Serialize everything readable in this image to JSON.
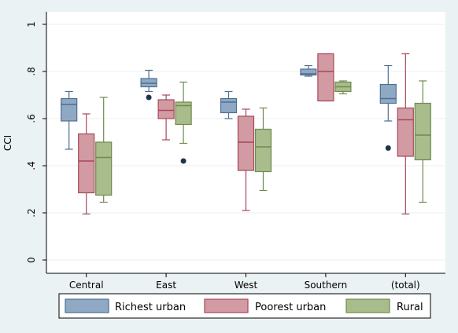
{
  "chart_data": {
    "type": "box",
    "title": "",
    "xlabel": "",
    "ylabel": "CCI",
    "ylim": [
      0,
      1
    ],
    "y_ticks": [
      0,
      0.2,
      0.4,
      0.6,
      0.8,
      1
    ],
    "y_tick_labels": [
      "0",
      ".2",
      ".4",
      ".6",
      ".8",
      "1"
    ],
    "grid": true,
    "legend_position": "bottom",
    "categories": [
      "Central",
      "East",
      "West",
      "Southern",
      "(total)"
    ],
    "series": [
      {
        "name": "Richest urban",
        "color": "#4e6f92",
        "fill": "#8fa9c4",
        "boxes": [
          {
            "min": 0.47,
            "q1": 0.59,
            "median": 0.66,
            "q3": 0.685,
            "max": 0.715,
            "outliers": []
          },
          {
            "min": 0.715,
            "q1": 0.735,
            "median": 0.75,
            "q3": 0.77,
            "max": 0.805,
            "outliers": [
              0.69
            ]
          },
          {
            "min": 0.6,
            "q1": 0.625,
            "median": 0.67,
            "q3": 0.685,
            "max": 0.715,
            "outliers": []
          },
          {
            "min": 0.78,
            "q1": 0.785,
            "median": 0.79,
            "q3": 0.81,
            "max": 0.825,
            "outliers": []
          },
          {
            "min": 0.59,
            "q1": 0.665,
            "median": 0.685,
            "q3": 0.745,
            "max": 0.825,
            "outliers": [
              0.475
            ]
          }
        ]
      },
      {
        "name": "Poorest urban",
        "color": "#a8475a",
        "fill": "#d29aa3",
        "boxes": [
          {
            "min": 0.195,
            "q1": 0.285,
            "median": 0.42,
            "q3": 0.535,
            "max": 0.62,
            "outliers": []
          },
          {
            "min": 0.51,
            "q1": 0.6,
            "median": 0.635,
            "q3": 0.68,
            "max": 0.7,
            "outliers": []
          },
          {
            "min": 0.21,
            "q1": 0.38,
            "median": 0.5,
            "q3": 0.61,
            "max": 0.64,
            "outliers": []
          },
          {
            "min": 0.675,
            "q1": 0.675,
            "median": 0.8,
            "q3": 0.875,
            "max": 0.875,
            "outliers": []
          },
          {
            "min": 0.195,
            "q1": 0.44,
            "median": 0.595,
            "q3": 0.645,
            "max": 0.875,
            "outliers": []
          }
        ]
      },
      {
        "name": "Rural",
        "color": "#6f8a4e",
        "fill": "#a8bc8c",
        "boxes": [
          {
            "min": 0.245,
            "q1": 0.275,
            "median": 0.435,
            "q3": 0.5,
            "max": 0.69,
            "outliers": []
          },
          {
            "min": 0.495,
            "q1": 0.575,
            "median": 0.655,
            "q3": 0.67,
            "max": 0.755,
            "outliers": [
              0.42
            ]
          },
          {
            "min": 0.295,
            "q1": 0.375,
            "median": 0.48,
            "q3": 0.555,
            "max": 0.645,
            "outliers": []
          },
          {
            "min": 0.705,
            "q1": 0.715,
            "median": 0.735,
            "q3": 0.755,
            "max": 0.76,
            "outliers": []
          },
          {
            "min": 0.245,
            "q1": 0.425,
            "median": 0.53,
            "q3": 0.665,
            "max": 0.76,
            "outliers": []
          }
        ]
      }
    ]
  }
}
